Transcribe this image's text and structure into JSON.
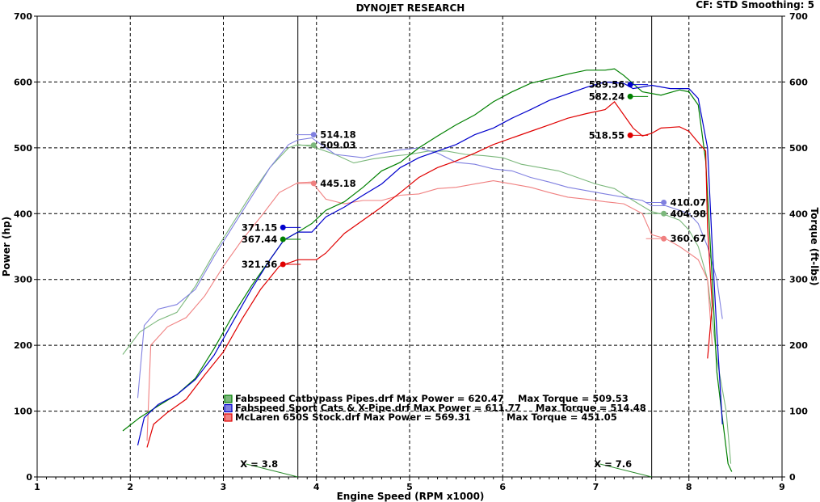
{
  "header": {
    "title": "DYNOJET RESEARCH",
    "settings": "CF: STD  Smoothing: 5"
  },
  "chart_data": {
    "type": "line",
    "title": "DYNOJET RESEARCH",
    "xlabel": "Engine Speed (RPM x1000)",
    "ylabel": "Power (hp)",
    "y2label": "Torque (ft-lbs)",
    "xlim": [
      1,
      9
    ],
    "ylim": [
      0,
      700
    ],
    "xticks": [
      "1",
      "2",
      "3",
      "4",
      "5",
      "6",
      "7",
      "8",
      "9"
    ],
    "yticks": [
      "0",
      "100",
      "200",
      "300",
      "400",
      "500",
      "600",
      "700"
    ],
    "grid": true,
    "cursors": [
      {
        "x": 3.8,
        "label": "X = 3.8"
      },
      {
        "x": 7.6,
        "label": "X = 7.6"
      }
    ],
    "series": [
      {
        "name": "Fabspeed Catbypass Pipes.drf Max Power = 620.47",
        "max_torque": "Max Torque = 509.53",
        "color": "#008000",
        "light": "#7cb87c",
        "power": [
          [
            1.92,
            70
          ],
          [
            2.1,
            90
          ],
          [
            2.3,
            108
          ],
          [
            2.5,
            125
          ],
          [
            2.7,
            150
          ],
          [
            2.9,
            195
          ],
          [
            3.1,
            245
          ],
          [
            3.3,
            290
          ],
          [
            3.5,
            330
          ],
          [
            3.65,
            360
          ],
          [
            3.8,
            372
          ],
          [
            3.95,
            385
          ],
          [
            4.1,
            405
          ],
          [
            4.3,
            418
          ],
          [
            4.5,
            440
          ],
          [
            4.7,
            465
          ],
          [
            4.9,
            478
          ],
          [
            5.1,
            500
          ],
          [
            5.3,
            518
          ],
          [
            5.5,
            535
          ],
          [
            5.7,
            550
          ],
          [
            5.9,
            570
          ],
          [
            6.1,
            585
          ],
          [
            6.3,
            598
          ],
          [
            6.5,
            605
          ],
          [
            6.7,
            612
          ],
          [
            6.9,
            618
          ],
          [
            7.1,
            618
          ],
          [
            7.2,
            620
          ],
          [
            7.3,
            610
          ],
          [
            7.5,
            585
          ],
          [
            7.7,
            580
          ],
          [
            7.9,
            588
          ],
          [
            8.0,
            585
          ],
          [
            8.1,
            565
          ],
          [
            8.18,
            480
          ],
          [
            8.25,
            300
          ],
          [
            8.3,
            160
          ],
          [
            8.35,
            100
          ],
          [
            8.42,
            20
          ],
          [
            8.46,
            8
          ]
        ],
        "torque": [
          [
            1.92,
            186
          ],
          [
            2.1,
            220
          ],
          [
            2.3,
            238
          ],
          [
            2.5,
            250
          ],
          [
            2.7,
            290
          ],
          [
            2.9,
            340
          ],
          [
            3.1,
            385
          ],
          [
            3.3,
            430
          ],
          [
            3.5,
            470
          ],
          [
            3.7,
            500
          ],
          [
            3.8,
            505
          ],
          [
            3.95,
            502
          ],
          [
            4.2,
            490
          ],
          [
            4.4,
            477
          ],
          [
            4.6,
            483
          ],
          [
            4.8,
            487
          ],
          [
            5.0,
            490
          ],
          [
            5.2,
            495
          ],
          [
            5.4,
            495
          ],
          [
            5.6,
            490
          ],
          [
            5.8,
            488
          ],
          [
            6.0,
            485
          ],
          [
            6.2,
            475
          ],
          [
            6.4,
            470
          ],
          [
            6.6,
            465
          ],
          [
            6.8,
            455
          ],
          [
            7.0,
            445
          ],
          [
            7.2,
            438
          ],
          [
            7.4,
            420
          ],
          [
            7.6,
            403
          ],
          [
            7.75,
            398
          ],
          [
            7.9,
            390
          ],
          [
            8.0,
            375
          ],
          [
            8.1,
            350
          ],
          [
            8.2,
            300
          ],
          [
            8.3,
            180
          ],
          [
            8.4,
            100
          ],
          [
            8.45,
            20
          ]
        ],
        "markers": [
          {
            "label": "367.44",
            "x": 3.64,
            "y": 361,
            "side": "left",
            "kind": "power"
          },
          {
            "label": "509.03",
            "x": 3.97,
            "y": 504,
            "side": "right",
            "kind": "torque"
          },
          {
            "label": "582.24",
            "x": 7.37,
            "y": 578,
            "side": "left",
            "kind": "power"
          },
          {
            "label": "404.98",
            "x": 7.73,
            "y": 400,
            "side": "right",
            "kind": "torque"
          }
        ]
      },
      {
        "name": "Fabspeed Sport Cats & X-Pipe.drf Max Power = 611.77",
        "max_torque": "Max Torque = 514.48",
        "color": "#0000cc",
        "light": "#8080e0",
        "power": [
          [
            2.08,
            48
          ],
          [
            2.15,
            90
          ],
          [
            2.3,
            110
          ],
          [
            2.5,
            125
          ],
          [
            2.7,
            148
          ],
          [
            2.9,
            185
          ],
          [
            3.1,
            235
          ],
          [
            3.3,
            285
          ],
          [
            3.5,
            330
          ],
          [
            3.65,
            360
          ],
          [
            3.8,
            372
          ],
          [
            3.95,
            372
          ],
          [
            4.1,
            395
          ],
          [
            4.3,
            410
          ],
          [
            4.5,
            428
          ],
          [
            4.7,
            445
          ],
          [
            4.9,
            470
          ],
          [
            5.1,
            485
          ],
          [
            5.3,
            495
          ],
          [
            5.5,
            505
          ],
          [
            5.7,
            520
          ],
          [
            5.9,
            530
          ],
          [
            6.1,
            545
          ],
          [
            6.3,
            558
          ],
          [
            6.5,
            572
          ],
          [
            6.7,
            582
          ],
          [
            6.9,
            592
          ],
          [
            7.1,
            600
          ],
          [
            7.3,
            598
          ],
          [
            7.4,
            590
          ],
          [
            7.6,
            595
          ],
          [
            7.8,
            590
          ],
          [
            8.0,
            590
          ],
          [
            8.1,
            575
          ],
          [
            8.2,
            500
          ],
          [
            8.25,
            350
          ],
          [
            8.3,
            220
          ],
          [
            8.36,
            80
          ]
        ],
        "torque": [
          [
            2.08,
            120
          ],
          [
            2.15,
            230
          ],
          [
            2.3,
            255
          ],
          [
            2.5,
            262
          ],
          [
            2.7,
            285
          ],
          [
            2.9,
            335
          ],
          [
            3.1,
            380
          ],
          [
            3.3,
            425
          ],
          [
            3.5,
            470
          ],
          [
            3.7,
            505
          ],
          [
            3.8,
            512
          ],
          [
            3.95,
            515
          ],
          [
            4.2,
            490
          ],
          [
            4.5,
            485
          ],
          [
            4.7,
            492
          ],
          [
            4.9,
            497
          ],
          [
            5.1,
            500
          ],
          [
            5.3,
            492
          ],
          [
            5.5,
            478
          ],
          [
            5.7,
            475
          ],
          [
            5.9,
            468
          ],
          [
            6.1,
            465
          ],
          [
            6.3,
            455
          ],
          [
            6.5,
            448
          ],
          [
            6.7,
            440
          ],
          [
            6.9,
            435
          ],
          [
            7.1,
            430
          ],
          [
            7.3,
            425
          ],
          [
            7.5,
            420
          ],
          [
            7.6,
            412
          ],
          [
            7.75,
            412
          ],
          [
            7.9,
            405
          ],
          [
            8.0,
            400
          ],
          [
            8.1,
            385
          ],
          [
            8.2,
            350
          ],
          [
            8.3,
            300
          ],
          [
            8.36,
            240
          ]
        ],
        "markers": [
          {
            "label": "371.15",
            "x": 3.64,
            "y": 379,
            "side": "left",
            "kind": "power"
          },
          {
            "label": "514.18",
            "x": 3.97,
            "y": 520,
            "side": "right",
            "kind": "torque"
          },
          {
            "label": "589.56",
            "x": 7.37,
            "y": 596,
            "side": "left",
            "kind": "power"
          },
          {
            "label": "410.07",
            "x": 7.73,
            "y": 417,
            "side": "right",
            "kind": "torque"
          }
        ]
      },
      {
        "name": "McLaren 650S Stock.drf Max Power = 569.31",
        "max_torque": "Max Torque = 451.05",
        "color": "#e00000",
        "light": "#f08080",
        "power": [
          [
            2.18,
            45
          ],
          [
            2.25,
            80
          ],
          [
            2.4,
            98
          ],
          [
            2.6,
            118
          ],
          [
            2.8,
            155
          ],
          [
            3.0,
            190
          ],
          [
            3.2,
            240
          ],
          [
            3.4,
            285
          ],
          [
            3.6,
            320
          ],
          [
            3.8,
            330
          ],
          [
            4.0,
            330
          ],
          [
            4.1,
            340
          ],
          [
            4.3,
            370
          ],
          [
            4.5,
            390
          ],
          [
            4.7,
            410
          ],
          [
            4.9,
            432
          ],
          [
            5.1,
            455
          ],
          [
            5.3,
            470
          ],
          [
            5.5,
            480
          ],
          [
            5.7,
            492
          ],
          [
            5.9,
            505
          ],
          [
            6.1,
            515
          ],
          [
            6.3,
            525
          ],
          [
            6.5,
            535
          ],
          [
            6.7,
            545
          ],
          [
            6.9,
            552
          ],
          [
            7.1,
            558
          ],
          [
            7.2,
            570
          ],
          [
            7.3,
            550
          ],
          [
            7.4,
            530
          ],
          [
            7.5,
            518
          ],
          [
            7.6,
            522
          ],
          [
            7.7,
            530
          ],
          [
            7.9,
            532
          ],
          [
            8.0,
            525
          ],
          [
            8.1,
            508
          ],
          [
            8.18,
            495
          ],
          [
            8.2,
            380
          ],
          [
            8.25,
            260
          ],
          [
            8.2,
            180
          ]
        ],
        "torque": [
          [
            2.18,
            55
          ],
          [
            2.22,
            200
          ],
          [
            2.4,
            228
          ],
          [
            2.6,
            242
          ],
          [
            2.8,
            275
          ],
          [
            3.0,
            320
          ],
          [
            3.2,
            360
          ],
          [
            3.4,
            395
          ],
          [
            3.6,
            432
          ],
          [
            3.8,
            447
          ],
          [
            3.95,
            448
          ],
          [
            4.1,
            422
          ],
          [
            4.3,
            415
          ],
          [
            4.5,
            420
          ],
          [
            4.7,
            420
          ],
          [
            4.9,
            428
          ],
          [
            5.1,
            430
          ],
          [
            5.3,
            438
          ],
          [
            5.5,
            440
          ],
          [
            5.7,
            445
          ],
          [
            5.9,
            450
          ],
          [
            6.1,
            445
          ],
          [
            6.3,
            440
          ],
          [
            6.5,
            432
          ],
          [
            6.7,
            425
          ],
          [
            6.9,
            422
          ],
          [
            7.1,
            418
          ],
          [
            7.3,
            415
          ],
          [
            7.5,
            400
          ],
          [
            7.6,
            368
          ],
          [
            7.75,
            362
          ],
          [
            7.9,
            350
          ],
          [
            8.0,
            340
          ],
          [
            8.1,
            330
          ],
          [
            8.2,
            300
          ],
          [
            8.25,
            200
          ]
        ],
        "markers": [
          {
            "label": "321.36",
            "x": 3.64,
            "y": 323,
            "side": "left",
            "kind": "power"
          },
          {
            "label": "445.18",
            "x": 3.97,
            "y": 446,
            "side": "right",
            "kind": "torque"
          },
          {
            "label": "518.55",
            "x": 7.37,
            "y": 519,
            "side": "left",
            "kind": "power"
          },
          {
            "label": "360.67",
            "x": 7.73,
            "y": 362,
            "side": "right",
            "kind": "torque"
          }
        ]
      }
    ]
  }
}
